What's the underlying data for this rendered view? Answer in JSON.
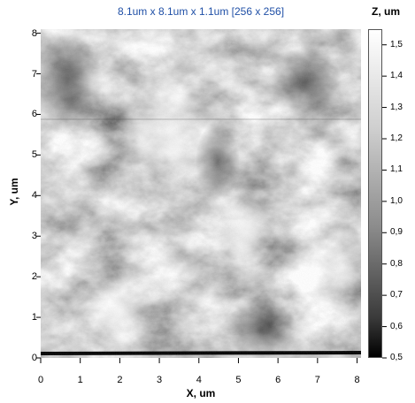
{
  "title": "8.1um x 8.1um x 1.1um [256 x 256]",
  "x_axis": {
    "label": "X, um",
    "ticks": [
      "0",
      "1",
      "2",
      "3",
      "4",
      "5",
      "6",
      "7",
      "8"
    ],
    "range": [
      0,
      8.1
    ]
  },
  "y_axis": {
    "label": "Y, um",
    "ticks": [
      "0",
      "1",
      "2",
      "3",
      "4",
      "5",
      "6",
      "7",
      "8"
    ],
    "range": [
      0,
      8.1
    ]
  },
  "colorbar": {
    "label": "Z, um",
    "ticks": [
      "1,5",
      "1,4",
      "1,3",
      "1,2",
      "1,1",
      "1,0",
      "0,9",
      "0,8",
      "0,7",
      "0,6",
      "0,5"
    ],
    "range": [
      0.5,
      1.55
    ],
    "colormap": "grayscale"
  },
  "colors": {
    "title": "#1f4fa6",
    "axis": "#000000"
  }
}
